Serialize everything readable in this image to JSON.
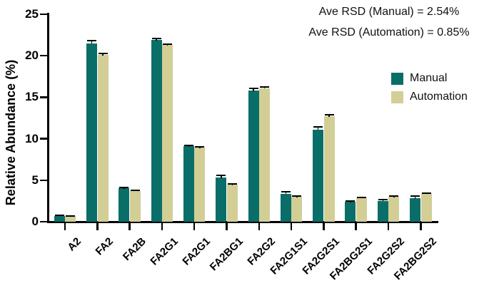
{
  "annotations": {
    "rsd_manual": "Ave RSD (Manual) = 2.54%",
    "rsd_automation": "Ave RSD (Automation) = 0.85%"
  },
  "legend": {
    "position": "right",
    "items": [
      {
        "label": "Manual",
        "color": "#0a6e68"
      },
      {
        "label": "Automation",
        "color": "#d2ce96"
      }
    ]
  },
  "chart_data": {
    "type": "bar",
    "title": "",
    "xlabel": "",
    "ylabel": "Relative Abundance (%)",
    "ylim": [
      0,
      25
    ],
    "yticks": [
      0,
      5,
      10,
      15,
      20,
      25
    ],
    "grid": false,
    "legend_position": "right",
    "error_bars": "upper SD with cap",
    "categories": [
      "A2",
      "FA2",
      "FA2B",
      "FA2G1",
      "FA2G1",
      "FA2BG1",
      "FA2G2",
      "FA2G1S1",
      "FA2G2S1",
      "FA2BG2S1",
      "FA2G2S2",
      "FA2BG2S2"
    ],
    "series": [
      {
        "name": "Manual",
        "color": "#0a6e68",
        "values": [
          0.7,
          21.5,
          4.0,
          21.9,
          9.1,
          5.3,
          15.8,
          3.35,
          11.1,
          2.4,
          2.5,
          2.8
        ],
        "errors": [
          0.08,
          0.35,
          0.1,
          0.15,
          0.12,
          0.3,
          0.3,
          0.3,
          0.3,
          0.12,
          0.15,
          0.25
        ]
      },
      {
        "name": "Automation",
        "color": "#d2ce96",
        "values": [
          0.65,
          20.1,
          3.7,
          21.3,
          8.9,
          4.45,
          16.1,
          3.0,
          12.7,
          2.85,
          3.0,
          3.35
        ],
        "errors": [
          0.05,
          0.15,
          0.06,
          0.1,
          0.1,
          0.08,
          0.12,
          0.1,
          0.15,
          0.1,
          0.1,
          0.12
        ]
      }
    ]
  },
  "colors": {
    "axis": "#000000",
    "background": "#ffffff",
    "annotation_text": "#111111"
  }
}
